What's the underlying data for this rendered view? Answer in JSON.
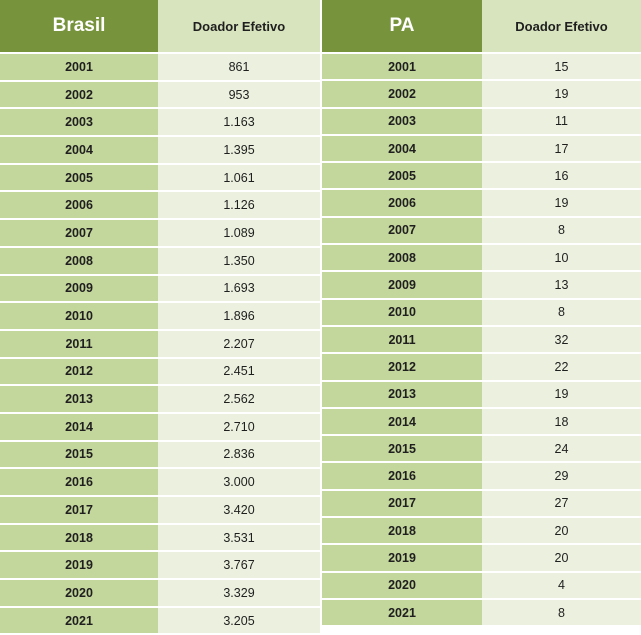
{
  "brasil": {
    "title": "Brasil",
    "column": "Doador Efetivo",
    "rows": [
      {
        "year": "2001",
        "value": "861"
      },
      {
        "year": "2002",
        "value": "953"
      },
      {
        "year": "2003",
        "value": "1.163"
      },
      {
        "year": "2004",
        "value": "1.395"
      },
      {
        "year": "2005",
        "value": "1.061"
      },
      {
        "year": "2006",
        "value": "1.126"
      },
      {
        "year": "2007",
        "value": "1.089"
      },
      {
        "year": "2008",
        "value": "1.350"
      },
      {
        "year": "2009",
        "value": "1.693"
      },
      {
        "year": "2010",
        "value": "1.896"
      },
      {
        "year": "2011",
        "value": "2.207"
      },
      {
        "year": "2012",
        "value": "2.451"
      },
      {
        "year": "2013",
        "value": "2.562"
      },
      {
        "year": "2014",
        "value": "2.710"
      },
      {
        "year": "2015",
        "value": "2.836"
      },
      {
        "year": "2016",
        "value": "3.000"
      },
      {
        "year": "2017",
        "value": "3.420"
      },
      {
        "year": "2018",
        "value": "3.531"
      },
      {
        "year": "2019",
        "value": "3.767"
      },
      {
        "year": "2020",
        "value": "3.329"
      },
      {
        "year": "2021",
        "value": "3.205"
      }
    ]
  },
  "pa": {
    "title": "PA",
    "column": "Doador Efetivo",
    "rows": [
      {
        "year": "2001",
        "value": "15"
      },
      {
        "year": "2002",
        "value": "19"
      },
      {
        "year": "2003",
        "value": "11"
      },
      {
        "year": "2004",
        "value": "17"
      },
      {
        "year": "2005",
        "value": "16"
      },
      {
        "year": "2006",
        "value": "19"
      },
      {
        "year": "2007",
        "value": "8"
      },
      {
        "year": "2008",
        "value": "10"
      },
      {
        "year": "2009",
        "value": "13"
      },
      {
        "year": "2010",
        "value": "8"
      },
      {
        "year": "2011",
        "value": "32"
      },
      {
        "year": "2012",
        "value": "22"
      },
      {
        "year": "2013",
        "value": "19"
      },
      {
        "year": "2014",
        "value": "18"
      },
      {
        "year": "2015",
        "value": "24"
      },
      {
        "year": "2016",
        "value": "29"
      },
      {
        "year": "2017",
        "value": "27"
      },
      {
        "year": "2018",
        "value": "20"
      },
      {
        "year": "2019",
        "value": "20"
      },
      {
        "year": "2020",
        "value": "4"
      },
      {
        "year": "2021",
        "value": "8"
      }
    ]
  }
}
